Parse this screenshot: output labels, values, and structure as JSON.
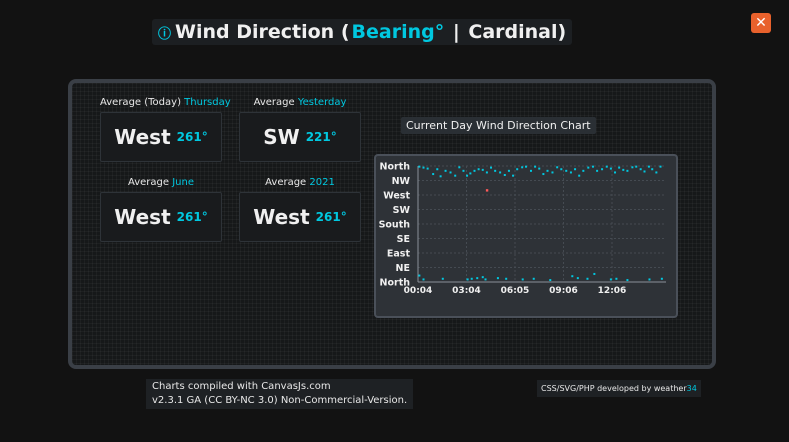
{
  "header": {
    "title_prefix": "Wind Direction (",
    "title_bearing": "Bearing°",
    "title_sep": " | ",
    "title_cardinal": "Cardinal)",
    "icon": "info-circle-icon",
    "close_label": "✕"
  },
  "averages": {
    "today": {
      "label": "Average (Today)",
      "period": "Thursday",
      "value": "West",
      "degrees": "261°"
    },
    "yesterday": {
      "label": "Average",
      "period": "Yesterday",
      "value": "SW",
      "degrees": "221°"
    },
    "month": {
      "label": "Average",
      "period": "June",
      "value": "West",
      "degrees": "261°"
    },
    "year": {
      "label": "Average",
      "period": "2021",
      "value": "West",
      "degrees": "261°"
    }
  },
  "chart_title": "Current Day Wind Direction Chart",
  "chart_data": {
    "type": "scatter",
    "x_ticks": [
      "00:04",
      "03:04",
      "06:05",
      "09:06",
      "12:06"
    ],
    "y_ticks": [
      "North",
      "NE",
      "East",
      "SE",
      "South",
      "SW",
      "West",
      "NW",
      "North"
    ],
    "ylim": [
      0,
      360
    ],
    "xlim_minutes": [
      0,
      900
    ],
    "grid": true,
    "point_color": "#00c8e0",
    "highlight_color": "#ff5a5a",
    "series": [
      {
        "points": [
          [
            5,
            358
          ],
          [
            20,
            355
          ],
          [
            35,
            352
          ],
          [
            55,
            335
          ],
          [
            70,
            350
          ],
          [
            82,
            328
          ],
          [
            100,
            345
          ],
          [
            118,
            340
          ],
          [
            135,
            330
          ],
          [
            150,
            356
          ],
          [
            165,
            345
          ],
          [
            178,
            330
          ],
          [
            190,
            337
          ],
          [
            205,
            345
          ],
          [
            220,
            350
          ],
          [
            235,
            348
          ],
          [
            250,
            340
          ],
          [
            265,
            355
          ],
          [
            280,
            345
          ],
          [
            298,
            340
          ],
          [
            315,
            332
          ],
          [
            330,
            345
          ],
          [
            345,
            330
          ],
          [
            360,
            350
          ],
          [
            378,
            356
          ],
          [
            392,
            358
          ],
          [
            410,
            345
          ],
          [
            425,
            358
          ],
          [
            440,
            352
          ],
          [
            455,
            335
          ],
          [
            470,
            345
          ],
          [
            488,
            340
          ],
          [
            505,
            356
          ],
          [
            520,
            350
          ],
          [
            538,
            345
          ],
          [
            555,
            340
          ],
          [
            570,
            350
          ],
          [
            585,
            330
          ],
          [
            600,
            345
          ],
          [
            618,
            355
          ],
          [
            635,
            358
          ],
          [
            650,
            345
          ],
          [
            668,
            350
          ],
          [
            685,
            358
          ],
          [
            700,
            352
          ],
          [
            715,
            340
          ],
          [
            730,
            355
          ],
          [
            745,
            348
          ],
          [
            760,
            345
          ],
          [
            778,
            356
          ],
          [
            792,
            358
          ],
          [
            808,
            350
          ],
          [
            822,
            343
          ],
          [
            838,
            358
          ],
          [
            850,
            350
          ],
          [
            865,
            340
          ],
          [
            880,
            358
          ],
          [
            5,
            20
          ],
          [
            20,
            8
          ],
          [
            90,
            10
          ],
          [
            180,
            8
          ],
          [
            195,
            10
          ],
          [
            215,
            12
          ],
          [
            235,
            15
          ],
          [
            245,
            8
          ],
          [
            290,
            12
          ],
          [
            320,
            10
          ],
          [
            380,
            8
          ],
          [
            420,
            10
          ],
          [
            480,
            6
          ],
          [
            560,
            18
          ],
          [
            580,
            12
          ],
          [
            615,
            10
          ],
          [
            640,
            25
          ],
          [
            700,
            8
          ],
          [
            720,
            10
          ],
          [
            760,
            6
          ],
          [
            840,
            8
          ],
          [
            885,
            10
          ]
        ],
        "highlight": [
          [
            250,
            285
          ]
        ]
      }
    ]
  },
  "footer": {
    "line1": "Charts compiled with CanvasJs.com",
    "line2": "v2.3.1 GA (CC BY-NC 3.0) Non-Commercial-Version.",
    "credit": "CSS/SVG/PHP developed by weather",
    "credit_accent": "34"
  }
}
